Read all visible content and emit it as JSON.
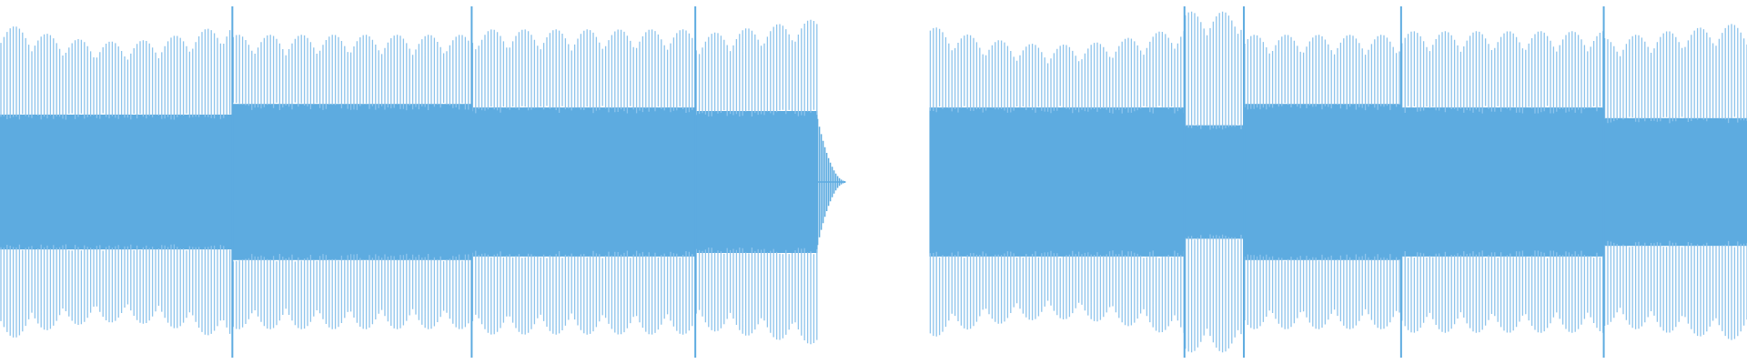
{
  "waveform": {
    "color_core": "#5dabe0",
    "color_outer": "#8ec4ec",
    "background": "#ffffff",
    "clips": [
      {
        "name": "clip-1",
        "segments": [
          {
            "start_frac": 0.0,
            "end_frac": 0.133,
            "core": 0.38,
            "peak": 0.9,
            "swell": "dip-middle"
          },
          {
            "start_frac": 0.133,
            "end_frac": 0.27,
            "core": 0.44,
            "peak": 0.83,
            "swell": "flat"
          },
          {
            "start_frac": 0.27,
            "end_frac": 0.398,
            "core": 0.42,
            "peak": 0.86,
            "swell": "flat"
          },
          {
            "start_frac": 0.398,
            "end_frac": 0.468,
            "core": 0.4,
            "peak": 0.92,
            "swell": "rise"
          }
        ],
        "tail_end_frac": 0.484
      },
      {
        "name": "clip-2",
        "segments": [
          {
            "start_frac": 0.532,
            "end_frac": 0.678,
            "core": 0.42,
            "peak": 0.88,
            "swell": "dip-middle"
          },
          {
            "start_frac": 0.678,
            "end_frac": 0.712,
            "core": 0.32,
            "peak": 0.96,
            "swell": "flat"
          },
          {
            "start_frac": 0.712,
            "end_frac": 0.802,
            "core": 0.44,
            "peak": 0.83,
            "swell": "flat"
          },
          {
            "start_frac": 0.802,
            "end_frac": 0.918,
            "core": 0.42,
            "peak": 0.85,
            "swell": "flat"
          },
          {
            "start_frac": 0.918,
            "end_frac": 1.0,
            "core": 0.36,
            "peak": 0.9,
            "swell": "rise"
          }
        ],
        "tail_end_frac": 1.0
      }
    ]
  }
}
